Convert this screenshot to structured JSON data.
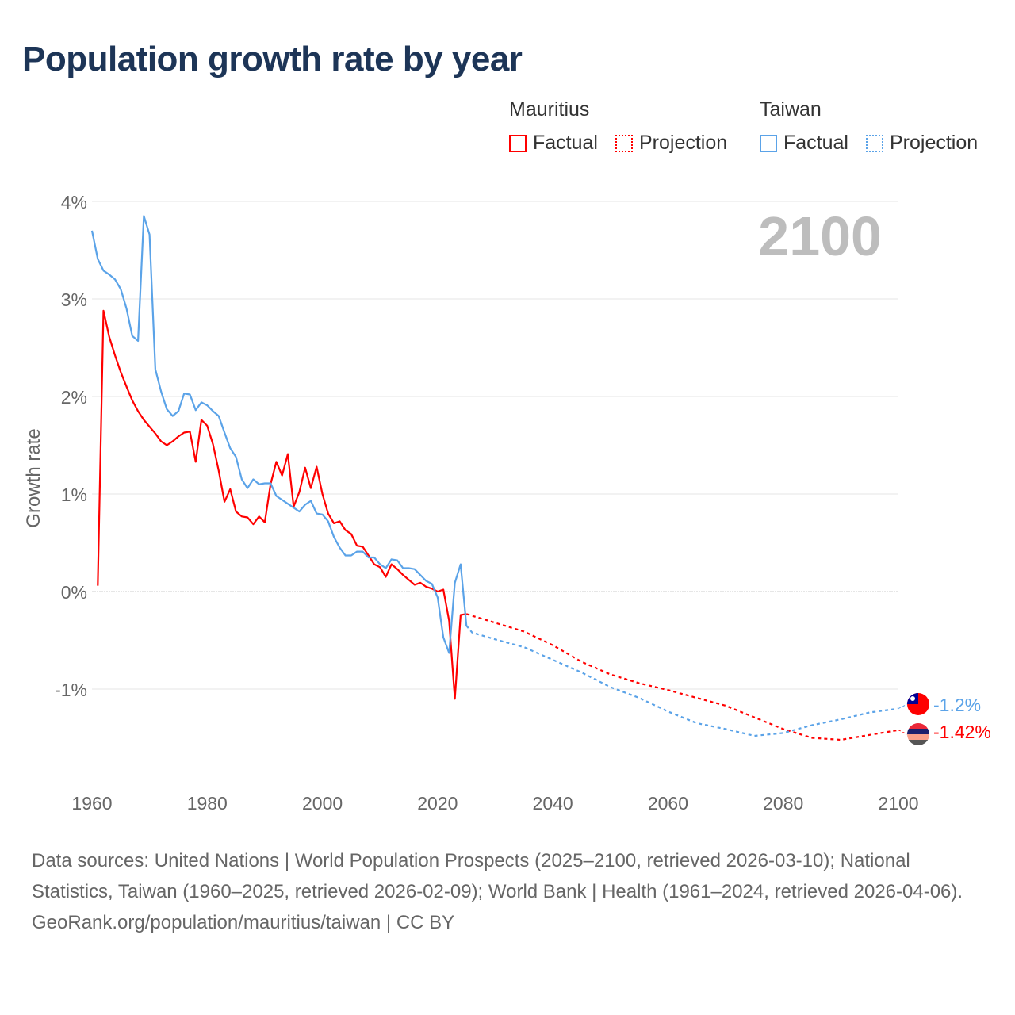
{
  "title": "Population growth rate by year",
  "legend": {
    "groups": [
      {
        "name": "Mauritius",
        "color": "#ff0000",
        "items": [
          "Factual",
          "Projection"
        ]
      },
      {
        "name": "Taiwan",
        "color": "#5ba3e8",
        "items": [
          "Factual",
          "Projection"
        ]
      }
    ]
  },
  "year_label": "2100",
  "footer": {
    "sources": "Data sources: United Nations | World Population Prospects (2025–2100, retrieved 2026-03-10); National Statistics, Taiwan (1960–2025, retrieved 2026-02-09); World Bank | Health (1961–2024, retrieved 2026-04-06).",
    "credit": "GeoRank.org/population/mauritius/taiwan | CC BY"
  },
  "chart_data": {
    "type": "line",
    "title": "Population growth rate by year",
    "xlabel": "",
    "ylabel": "Growth rate",
    "xlim": [
      1960,
      2100
    ],
    "ylim": [
      -1.9,
      4.0
    ],
    "x_ticks": [
      1960,
      1980,
      2000,
      2020,
      2040,
      2060,
      2080,
      2100
    ],
    "x_tick_labels": [
      "1960",
      "1980",
      "2000",
      "2020",
      "2040",
      "2060",
      "2080",
      "2100"
    ],
    "y_ticks": [
      4,
      3,
      2,
      1,
      0,
      -1
    ],
    "y_tick_labels": [
      "4%",
      "3%",
      "2%",
      "1%",
      "0%",
      "-1%"
    ],
    "grid": true,
    "legend_position": "top-right",
    "end_labels": {
      "Taiwan": "-1.2%",
      "Mauritius": "-1.42%"
    },
    "series": [
      {
        "name": "Mauritius",
        "kind": "Factual",
        "color": "#ff0000",
        "start": 1961,
        "values": [
          0.06,
          2.88,
          2.61,
          2.42,
          2.25,
          2.1,
          1.96,
          1.85,
          1.76,
          1.69,
          1.62,
          1.54,
          1.5,
          1.54,
          1.59,
          1.63,
          1.64,
          1.33,
          1.76,
          1.7,
          1.51,
          1.24,
          0.92,
          1.05,
          0.82,
          0.77,
          0.76,
          0.69,
          0.77,
          0.71,
          1.1,
          1.33,
          1.19,
          1.41,
          0.87,
          1.02,
          1.27,
          1.06,
          1.28,
          1.0,
          0.8,
          0.7,
          0.72,
          0.63,
          0.59,
          0.47,
          0.46,
          0.37,
          0.28,
          0.25,
          0.15,
          0.28,
          0.23,
          0.17,
          0.12,
          0.07,
          0.09,
          0.05,
          0.03,
          0.0,
          0.02,
          -0.3,
          -1.1,
          -0.24,
          -0.23
        ]
      },
      {
        "name": "Mauritius",
        "kind": "Projection",
        "color": "#ff0000",
        "x": [
          2025,
          2030,
          2035,
          2040,
          2045,
          2050,
          2055,
          2060,
          2065,
          2070,
          2075,
          2080,
          2085,
          2090,
          2095,
          2100
        ],
        "values": [
          -0.23,
          -0.32,
          -0.41,
          -0.55,
          -0.72,
          -0.85,
          -0.94,
          -1.01,
          -1.09,
          -1.17,
          -1.29,
          -1.41,
          -1.5,
          -1.52,
          -1.47,
          -1.42
        ]
      },
      {
        "name": "Taiwan",
        "kind": "Factual",
        "color": "#5ba3e8",
        "start": 1960,
        "values": [
          3.7,
          3.41,
          3.29,
          3.25,
          3.2,
          3.1,
          2.9,
          2.62,
          2.57,
          3.85,
          3.66,
          2.28,
          2.05,
          1.87,
          1.8,
          1.85,
          2.03,
          2.02,
          1.86,
          1.94,
          1.91,
          1.85,
          1.8,
          1.63,
          1.47,
          1.38,
          1.15,
          1.06,
          1.15,
          1.1,
          1.11,
          1.11,
          0.98,
          0.94,
          0.9,
          0.86,
          0.82,
          0.89,
          0.93,
          0.8,
          0.79,
          0.72,
          0.56,
          0.45,
          0.37,
          0.37,
          0.41,
          0.41,
          0.35,
          0.35,
          0.28,
          0.24,
          0.33,
          0.32,
          0.24,
          0.24,
          0.23,
          0.17,
          0.11,
          0.08,
          -0.06,
          -0.47,
          -0.63,
          0.09,
          0.28,
          -0.35
        ]
      },
      {
        "name": "Taiwan",
        "kind": "Projection",
        "color": "#5ba3e8",
        "x": [
          2025,
          2026,
          2030,
          2035,
          2040,
          2045,
          2050,
          2055,
          2060,
          2065,
          2070,
          2075,
          2080,
          2085,
          2090,
          2095,
          2100
        ],
        "values": [
          -0.35,
          -0.42,
          -0.49,
          -0.57,
          -0.7,
          -0.83,
          -0.98,
          -1.09,
          -1.23,
          -1.35,
          -1.41,
          -1.48,
          -1.45,
          -1.37,
          -1.31,
          -1.24,
          -1.2
        ]
      }
    ]
  }
}
